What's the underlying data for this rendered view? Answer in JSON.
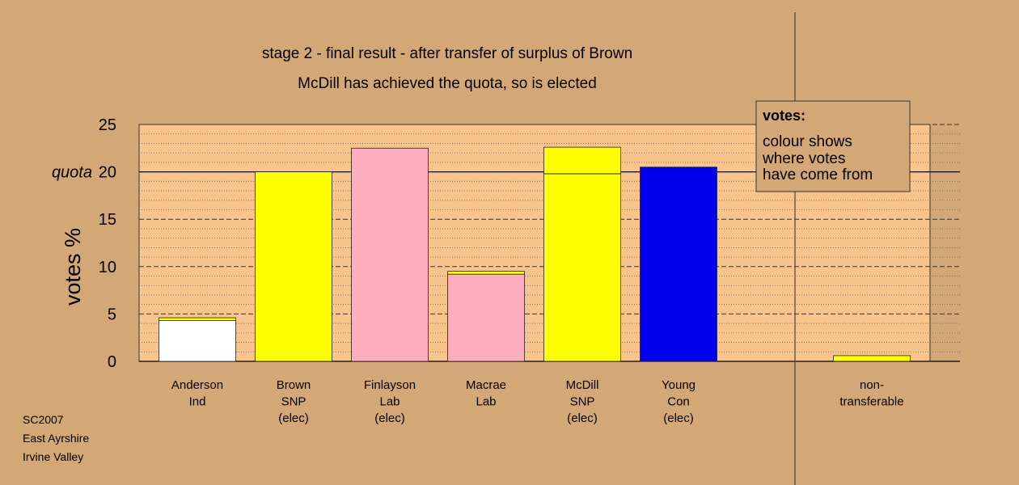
{
  "title_line1": "stage 2 - final result - after transfer of surplus of Brown",
  "title_line2": "McDill has achieved the quota, so is elected",
  "ylabel": "votes %",
  "quota_label": "quota",
  "legend": {
    "title": "votes:",
    "lines": [
      "colour shows",
      "where votes",
      "have come from"
    ]
  },
  "footer": [
    "SC2007",
    "East Ayrshire",
    "Irvine Valley"
  ],
  "colors": {
    "background": "#d4a876",
    "plot_area": "#f8c48c",
    "white": "#ffffff",
    "snp": "#ffff00",
    "lab": "#ffaec0",
    "con": "#0000ee"
  },
  "chart_data": {
    "type": "bar",
    "stacked": true,
    "ylim": [
      0,
      25
    ],
    "yticks": [
      0,
      5,
      10,
      15,
      20,
      25
    ],
    "quota": 20,
    "grid": "dotted-horizontal",
    "categories": [
      {
        "lines": [
          "Anderson",
          "Ind"
        ],
        "segments": [
          {
            "value": 4.3,
            "color": "white"
          },
          {
            "value": 0.3,
            "color": "snp"
          }
        ]
      },
      {
        "lines": [
          "Brown",
          "SNP",
          "(elec)"
        ],
        "segments": [
          {
            "value": 20.0,
            "color": "snp"
          }
        ]
      },
      {
        "lines": [
          "Finlayson",
          "Lab",
          "(elec)"
        ],
        "segments": [
          {
            "value": 22.5,
            "color": "lab"
          }
        ]
      },
      {
        "lines": [
          "Macrae",
          "Lab"
        ],
        "segments": [
          {
            "value": 9.2,
            "color": "lab"
          },
          {
            "value": 0.3,
            "color": "snp"
          }
        ]
      },
      {
        "lines": [
          "McDill",
          "SNP",
          "(elec)"
        ],
        "segments": [
          {
            "value": 19.8,
            "color": "snp"
          },
          {
            "value": 2.8,
            "color": "snp"
          }
        ]
      },
      {
        "lines": [
          "Young",
          "Con",
          "(elec)"
        ],
        "segments": [
          {
            "value": 20.5,
            "color": "con"
          }
        ]
      },
      {
        "lines": [
          "non-",
          "transferable"
        ],
        "segments": [
          {
            "value": 0.6,
            "color": "snp"
          }
        ],
        "separated": true
      }
    ]
  }
}
